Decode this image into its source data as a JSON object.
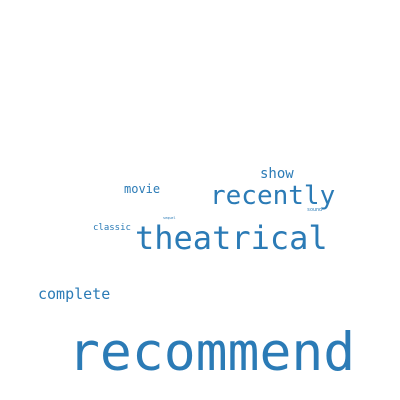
{
  "word_cloud": {
    "words": [
      {
        "text": "recommend"
      },
      {
        "text": "theatrical"
      },
      {
        "text": "recently"
      },
      {
        "text": "complete"
      },
      {
        "text": "show"
      },
      {
        "text": "movie"
      },
      {
        "text": "classic"
      },
      {
        "text": "sound"
      },
      {
        "text": "sequel"
      }
    ],
    "color": "#2b7bb6",
    "background": "#ffffff"
  }
}
